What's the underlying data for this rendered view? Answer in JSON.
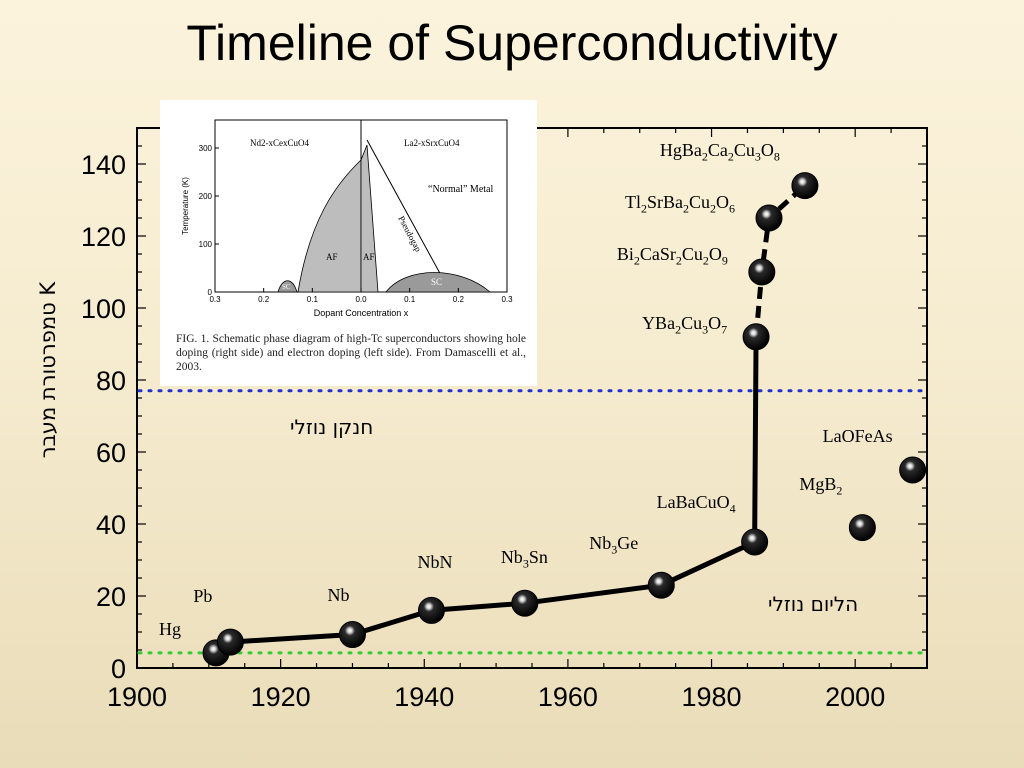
{
  "title": "Timeline of Superconductivity",
  "chart_data": {
    "type": "scatter",
    "ylabel": "טמפרטורת מעבר K",
    "xlim": [
      1900,
      2010
    ],
    "ylim": [
      0,
      150
    ],
    "x_ticks": [
      "1900",
      "1920",
      "1940",
      "1960",
      "1980",
      "2000"
    ],
    "y_ticks": [
      "0",
      "20",
      "40",
      "60",
      "80",
      "100",
      "120",
      "140"
    ],
    "series": [
      {
        "points": [
          {
            "x": 1911,
            "y": 4.2,
            "label": "Hg"
          },
          {
            "x": 1913,
            "y": 7.2,
            "label": "Pb"
          },
          {
            "x": 1930,
            "y": 9.3,
            "label": "Nb"
          },
          {
            "x": 1941,
            "y": 16,
            "label": "NbN"
          },
          {
            "x": 1954,
            "y": 18,
            "label": "Nb3Sn"
          },
          {
            "x": 1973,
            "y": 23,
            "label": "Nb3Ge"
          },
          {
            "x": 1986,
            "y": 35,
            "label": "LaBaCuO4"
          },
          {
            "x": 1986.2,
            "y": 92,
            "label": "YBa2Cu3O7"
          },
          {
            "x": 1987,
            "y": 110,
            "label": "Bi2CaSr2Cu2O9"
          },
          {
            "x": 1988,
            "y": 125,
            "label": "Tl2SrBa2Cu2O6"
          },
          {
            "x": 1993,
            "y": 134,
            "label": "HgBa2Ca2Cu3O8"
          }
        ]
      },
      {
        "points": [
          {
            "x": 2001,
            "y": 39,
            "label": "MgB2"
          },
          {
            "x": 2008,
            "y": 55,
            "label": "LaOFeAs"
          }
        ]
      }
    ],
    "reference_lines": [
      {
        "y": 77,
        "color": "#2233cc",
        "label": "חנקן נוזלי"
      },
      {
        "y": 4.2,
        "color": "#33cc33",
        "label": "הליום נוזלי"
      }
    ],
    "grid": false
  },
  "inset": {
    "left_formula": "Nd2-xCexCuO4",
    "right_formula": "La2-xSrxCuO4",
    "normal_metal": "“Normal” Metal",
    "pseudogap": "Pseudogap",
    "af": "AF",
    "sc": "SC",
    "ylabel": "Temperature (K)",
    "xlabel": "Dopant Concentration x",
    "yticks": [
      "0",
      "100",
      "200",
      "300"
    ],
    "xticks": [
      "0.3",
      "0.2",
      "0.1",
      "0.0",
      "0.1",
      "0.2",
      "0.3"
    ],
    "caption": "FIG. 1. Schematic phase diagram of high-Tc superconductors showing hole doping (right side) and electron doping (left side). From Damascelli et al., 2003."
  }
}
